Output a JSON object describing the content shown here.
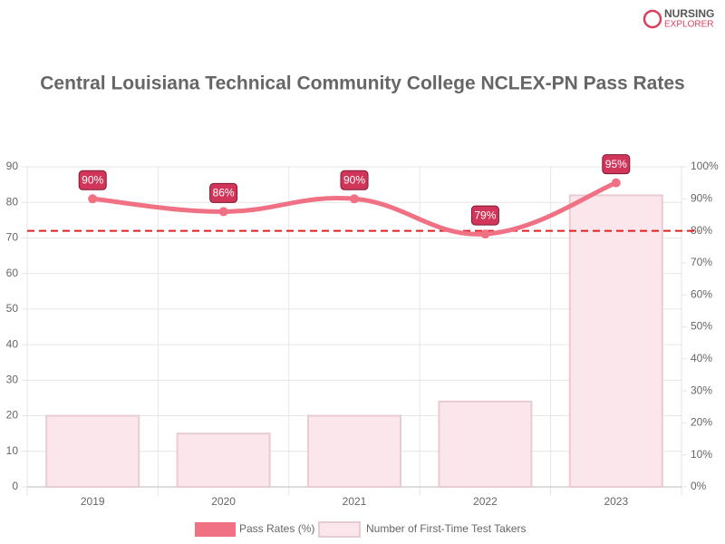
{
  "brand": [
    "NURSING",
    "EXPLORER"
  ],
  "chart_data": {
    "type": "bar-line",
    "title": "Central Louisiana Technical Community College NCLEX-PN Pass Rates",
    "categories": [
      "2019",
      "2020",
      "2021",
      "2022",
      "2023"
    ],
    "series": [
      {
        "name": "Pass Rates (%)",
        "type": "line",
        "axis": "y2",
        "color": "#f07084",
        "values": [
          90,
          86,
          90,
          79,
          95
        ],
        "value_labels": [
          "90%",
          "86%",
          "90%",
          "79%",
          "95%"
        ]
      },
      {
        "name": "Number of First-Time Test Takers",
        "type": "bar",
        "color": "#fae6eb",
        "values": [
          20,
          15,
          20,
          24,
          82
        ]
      }
    ],
    "ylim": [
      0,
      90
    ],
    "yticks": [
      0,
      10,
      20,
      30,
      40,
      50,
      60,
      70,
      80,
      90
    ],
    "y2lim": [
      0,
      100
    ],
    "y2ticks": [
      {
        "value": 0,
        "label": "0%"
      },
      {
        "value": 10,
        "label": "10%"
      },
      {
        "value": 20,
        "label": "20%"
      },
      {
        "value": 30,
        "label": "30%"
      },
      {
        "value": 40,
        "label": "40%"
      },
      {
        "value": 50,
        "label": "50%"
      },
      {
        "value": 60,
        "label": "60%"
      },
      {
        "value": 70,
        "label": "70%"
      },
      {
        "value": 80,
        "label": "80%"
      },
      {
        "value": 90,
        "label": "90%"
      },
      {
        "value": 100,
        "label": "100%"
      }
    ],
    "reference_line": {
      "value": 80,
      "axis": "y2",
      "color": "#e02020"
    },
    "grid": true
  }
}
